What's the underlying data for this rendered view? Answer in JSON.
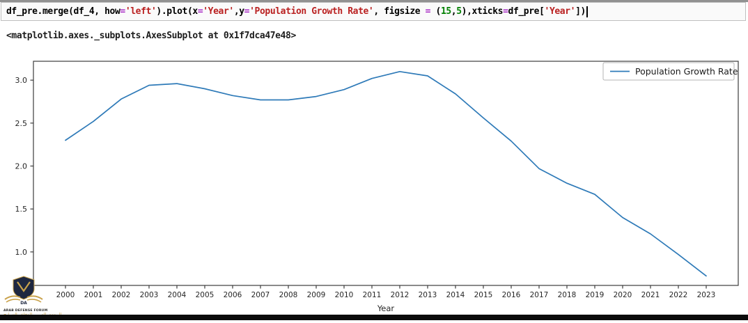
{
  "code_cell": {
    "colors": {
      "k": "#000000",
      "op": "#a625c4",
      "str": "#ba2121",
      "num": "#008000"
    },
    "tokens": [
      {
        "text": "df_pre.merge(df_4, how",
        "color": "k"
      },
      {
        "text": "=",
        "color": "op"
      },
      {
        "text": "'left'",
        "color": "str"
      },
      {
        "text": ").plot(x",
        "color": "k"
      },
      {
        "text": "=",
        "color": "op"
      },
      {
        "text": "'Year'",
        "color": "str"
      },
      {
        "text": ",y",
        "color": "k"
      },
      {
        "text": "=",
        "color": "op"
      },
      {
        "text": "'Population Growth Rate'",
        "color": "str"
      },
      {
        "text": ", figsize ",
        "color": "k"
      },
      {
        "text": "=",
        "color": "op"
      },
      {
        "text": " (",
        "color": "k"
      },
      {
        "text": "15",
        "color": "num"
      },
      {
        "text": ",",
        "color": "k"
      },
      {
        "text": "5",
        "color": "num"
      },
      {
        "text": "),xticks",
        "color": "k"
      },
      {
        "text": "=",
        "color": "op"
      },
      {
        "text": "df_pre[",
        "color": "k"
      },
      {
        "text": "'Year'",
        "color": "str"
      },
      {
        "text": "])",
        "color": "k"
      }
    ]
  },
  "output_text": "<matplotlib.axes._subplots.AxesSubplot at 0x1f7dca47e48>",
  "chart_data": {
    "type": "line",
    "title": "",
    "xlabel": "Year",
    "ylabel": "",
    "grid": false,
    "line_color": "#2e7ab8",
    "legend": {
      "label": "Population Growth Rate",
      "position": "upper right"
    },
    "categories": [
      2000,
      2001,
      2002,
      2003,
      2004,
      2005,
      2006,
      2007,
      2008,
      2009,
      2010,
      2011,
      2012,
      2013,
      2014,
      2015,
      2016,
      2017,
      2018,
      2019,
      2020,
      2021,
      2022,
      2023
    ],
    "series": [
      {
        "name": "Population Growth Rate",
        "values": [
          2.3,
          2.52,
          2.78,
          2.94,
          2.96,
          2.9,
          2.82,
          2.77,
          2.77,
          2.81,
          2.89,
          3.02,
          3.1,
          3.05,
          2.84,
          2.56,
          2.29,
          1.97,
          1.8,
          1.67,
          1.4,
          1.21,
          0.97,
          0.72
        ]
      }
    ],
    "yticks": [
      1.0,
      1.5,
      2.0,
      2.5,
      3.0
    ],
    "ytick_labels": [
      "1.0",
      "1.5",
      "2.0",
      "2.5",
      "3.0"
    ],
    "xlim": [
      1998.85,
      2024.15
    ],
    "ylim": [
      0.61,
      3.22
    ]
  },
  "watermark": {
    "monogram": "DA",
    "name_en": "ARAB DEFENSE FORUM",
    "name_ar": "المنتدى العربي للدفاع والتسليح"
  }
}
